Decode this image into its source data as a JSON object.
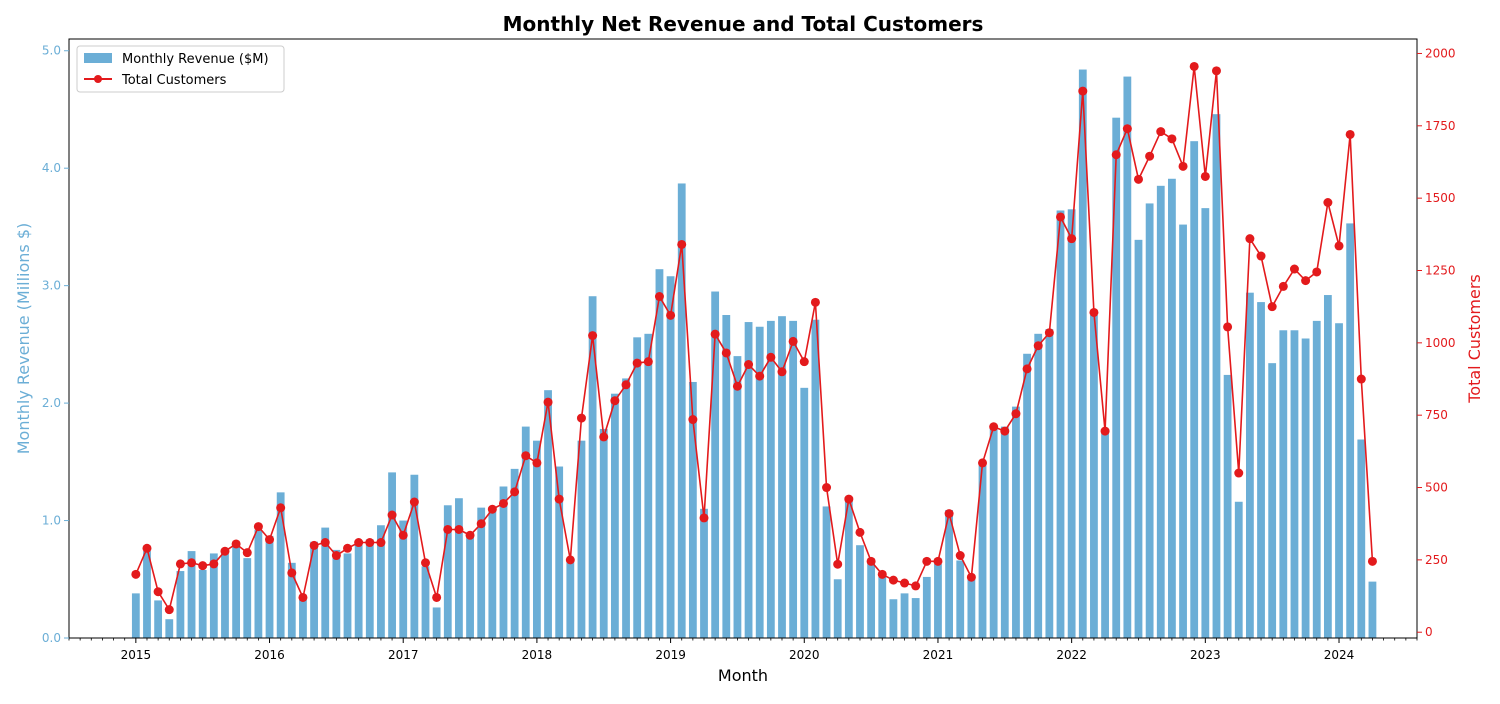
{
  "chart_data": {
    "type": "bar+line",
    "title": "Monthly Net Revenue and Total Customers",
    "xlabel": "Month",
    "ylabel_left": "Monthly Revenue (Millions $)",
    "ylabel_right": "Total Customers",
    "ylim_left": [
      0,
      5.1
    ],
    "ylim_right": [
      -20,
      2050
    ],
    "xlim": [
      "2014-07",
      "2024-08"
    ],
    "yticks_left": [
      "0.0",
      "1.0",
      "2.0",
      "3.0",
      "4.0",
      "5.0"
    ],
    "yticks_right": [
      "0",
      "250",
      "500",
      "750",
      "1000",
      "1250",
      "1500",
      "1750",
      "2000"
    ],
    "xticks": [
      "2015",
      "2016",
      "2017",
      "2018",
      "2019",
      "2020",
      "2021",
      "2022",
      "2023",
      "2024"
    ],
    "legend": {
      "placement": "top-left",
      "entries": [
        "Monthly Revenue ($M)",
        "Total Customers"
      ]
    },
    "colors": {
      "bars": "#6baed6",
      "line": "#e31a1c",
      "left_axis": "#6baed6",
      "right_axis": "#e31a1c"
    },
    "grid": false,
    "start_month": "2015-01",
    "series": [
      {
        "name": "Monthly Revenue ($M)",
        "type": "bar",
        "axis": "left",
        "values": [
          0.38,
          0.74,
          0.32,
          0.16,
          0.57,
          0.74,
          0.58,
          0.72,
          0.72,
          0.79,
          0.68,
          0.92,
          0.87,
          1.24,
          0.64,
          0.34,
          0.82,
          0.94,
          0.75,
          0.72,
          0.8,
          0.84,
          0.96,
          1.41,
          1.0,
          1.39,
          0.61,
          0.26,
          1.13,
          1.19,
          0.86,
          1.11,
          1.11,
          1.29,
          1.44,
          1.8,
          1.68,
          2.11,
          1.46,
          0.66,
          1.68,
          2.91,
          1.78,
          2.08,
          2.21,
          2.56,
          2.59,
          3.14,
          3.08,
          3.87,
          2.18,
          1.1,
          2.95,
          2.75,
          2.4,
          2.69,
          2.65,
          2.7,
          2.74,
          2.7,
          2.13,
          2.71,
          1.12,
          0.5,
          1.19,
          0.79,
          0.64,
          0.52,
          0.33,
          0.38,
          0.34,
          0.52,
          0.63,
          1.09,
          0.66,
          0.5,
          1.49,
          1.79,
          1.8,
          1.97,
          2.42,
          2.59,
          2.63,
          3.64,
          3.65,
          4.84,
          2.75,
          1.76,
          4.43,
          4.78,
          3.39,
          3.7,
          3.85,
          3.91,
          3.52,
          4.23,
          3.66,
          4.46,
          2.24,
          1.16,
          2.94,
          2.86,
          2.34,
          2.62,
          2.62,
          2.55,
          2.7,
          2.92,
          2.68,
          3.53,
          1.69,
          0.48
        ]
      },
      {
        "name": "Total Customers",
        "type": "line",
        "axis": "right",
        "values": [
          200,
          290,
          140,
          78,
          236,
          240,
          230,
          236,
          280,
          305,
          275,
          365,
          320,
          430,
          205,
          120,
          300,
          310,
          265,
          290,
          310,
          310,
          310,
          405,
          335,
          450,
          240,
          120,
          355,
          355,
          335,
          375,
          425,
          445,
          485,
          610,
          585,
          795,
          460,
          250,
          740,
          1025,
          675,
          800,
          855,
          930,
          935,
          1160,
          1095,
          1340,
          735,
          395,
          1030,
          965,
          850,
          925,
          885,
          950,
          900,
          1005,
          935,
          1140,
          500,
          235,
          460,
          345,
          245,
          200,
          180,
          170,
          160,
          245,
          245,
          410,
          265,
          190,
          585,
          710,
          695,
          755,
          910,
          990,
          1035,
          1435,
          1360,
          1870,
          1105,
          695,
          1650,
          1740,
          1565,
          1645,
          1730,
          1705,
          1610,
          1955,
          1575,
          1940,
          1055,
          550,
          1360,
          1300,
          1125,
          1195,
          1255,
          1215,
          1245,
          1485,
          1335,
          1720,
          875,
          245
        ]
      }
    ]
  }
}
